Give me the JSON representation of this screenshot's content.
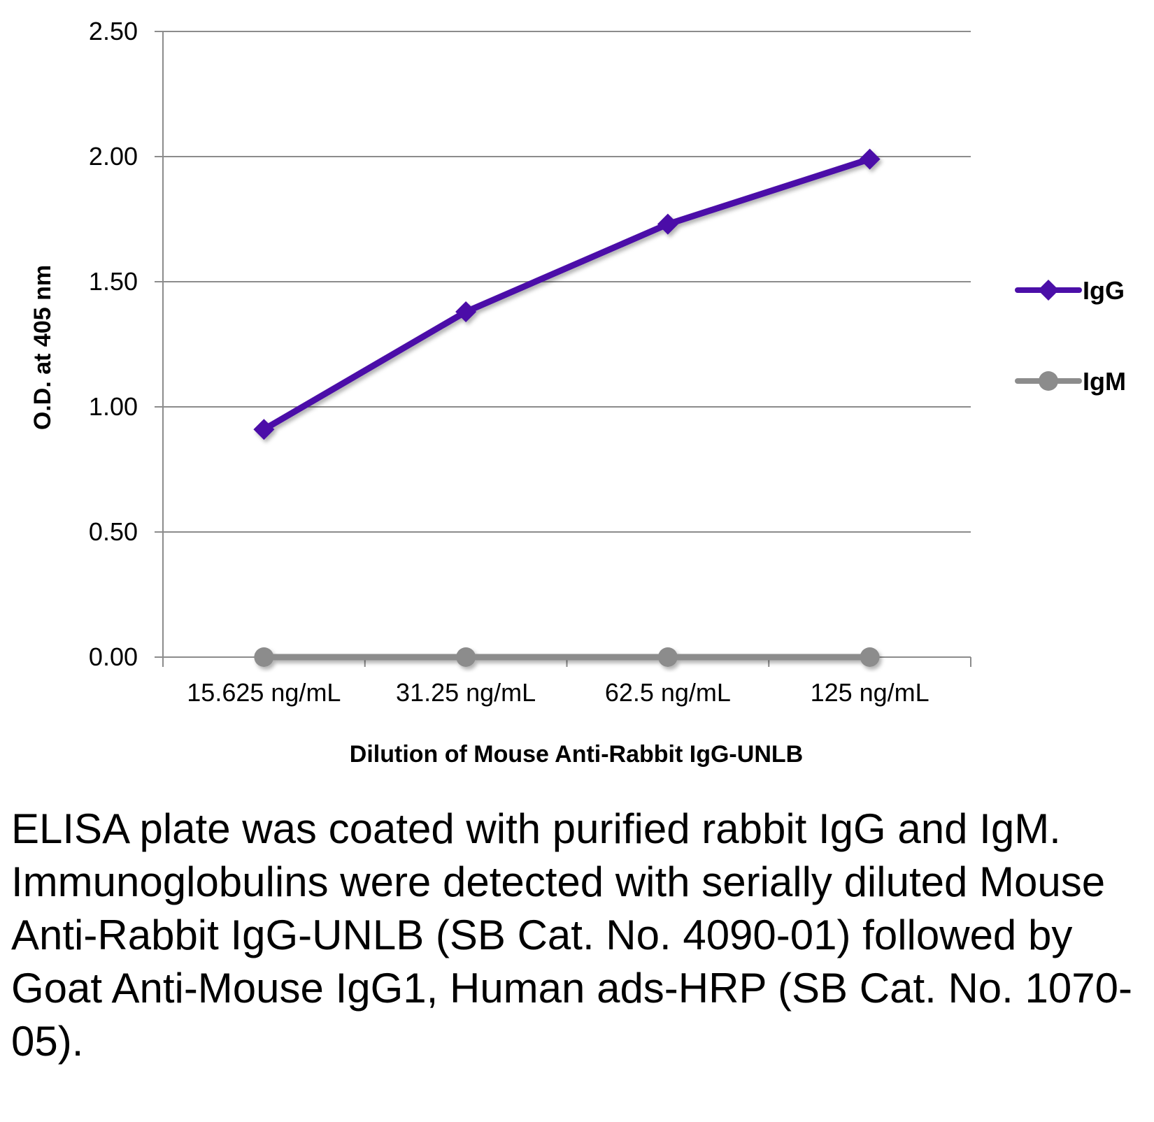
{
  "chart_data": {
    "type": "line",
    "categories": [
      "15.625 ng/mL",
      "31.25 ng/mL",
      "62.5 ng/mL",
      "125 ng/mL"
    ],
    "series": [
      {
        "name": "IgG",
        "values": [
          0.91,
          1.38,
          1.73,
          1.99
        ],
        "color": "#4b0fa8",
        "marker": "diamond"
      },
      {
        "name": "IgM",
        "values": [
          0.0,
          0.0,
          0.0,
          0.0
        ],
        "color": "#8c8c8c",
        "marker": "circle"
      }
    ],
    "xlabel": "Dilution of Mouse Anti-Rabbit IgG-UNLB",
    "ylabel": "O.D. at 405 nm",
    "ylim": [
      0,
      2.5
    ],
    "yticks": [
      "0.00",
      "0.50",
      "1.00",
      "1.50",
      "2.00",
      "2.50"
    ],
    "grid": true,
    "legend_position": "right"
  },
  "caption": "ELISA plate was coated with purified rabbit IgG and IgM.  Immunoglobulins were detected with serially diluted Mouse Anti-Rabbit IgG-UNLB (SB Cat. No. 4090-01) followed by Goat Anti-Mouse IgG1, Human ads-HRP (SB Cat. No. 1070-05)."
}
